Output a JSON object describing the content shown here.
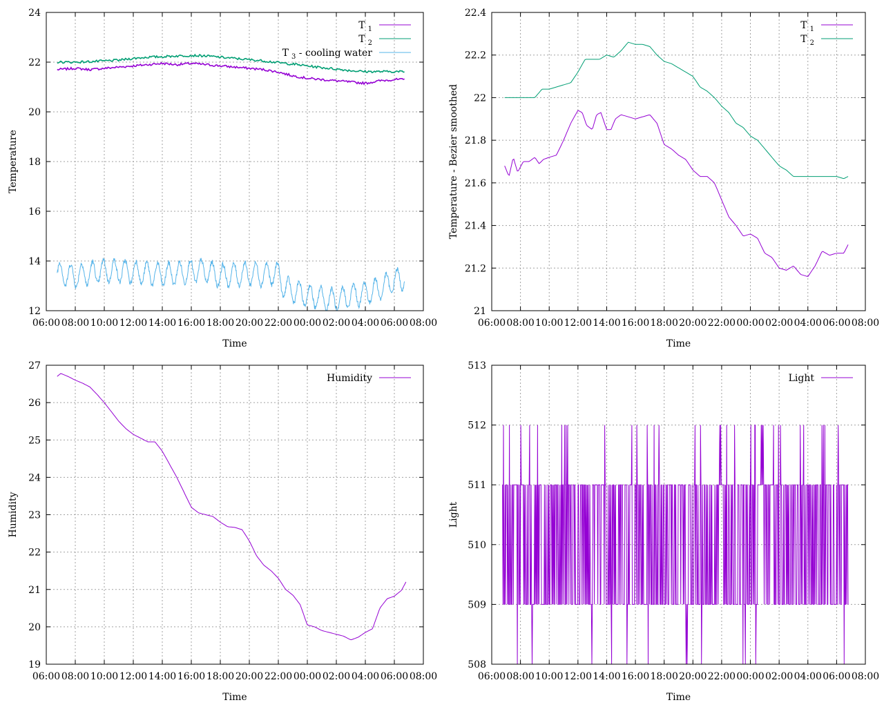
{
  "chart_data": [
    {
      "type": "line",
      "ylabel": "Temperature",
      "xlabel": "Time",
      "ylim": [
        12,
        24
      ],
      "yticks": [
        12,
        14,
        16,
        18,
        20,
        22,
        24
      ],
      "xticks": [
        "06:00",
        "08:00",
        "10:00",
        "12:00",
        "14:00",
        "16:00",
        "18:00",
        "20:00",
        "22:00",
        "00:00",
        "02:00",
        "04:00",
        "06:00",
        "08:00"
      ],
      "grid": true,
      "legend_position": "top-right",
      "series": [
        {
          "name": "T",
          "sub": "1",
          "color": "#9400d3",
          "x": [
            6.75,
            8,
            9,
            10,
            11,
            12,
            13,
            14,
            15,
            16,
            17,
            18,
            19,
            20,
            21,
            22,
            23,
            24,
            25,
            26,
            27,
            28,
            29,
            30,
            30.7
          ],
          "y": [
            21.7,
            21.75,
            21.7,
            21.75,
            21.8,
            21.85,
            21.9,
            21.95,
            21.9,
            21.95,
            21.9,
            21.85,
            21.8,
            21.75,
            21.7,
            21.6,
            21.45,
            21.35,
            21.3,
            21.25,
            21.2,
            21.15,
            21.25,
            21.3,
            21.3
          ]
        },
        {
          "name": "T",
          "sub": "2",
          "color": "#009e73",
          "x": [
            6.75,
            8,
            9,
            10,
            11,
            12,
            13,
            14,
            15,
            16,
            17,
            18,
            19,
            20,
            21,
            22,
            23,
            24,
            25,
            26,
            27,
            28,
            29,
            30,
            30.7
          ],
          "y": [
            22.0,
            22.0,
            22.02,
            22.05,
            22.08,
            22.15,
            22.2,
            22.22,
            22.25,
            22.27,
            22.25,
            22.2,
            22.15,
            22.1,
            22.05,
            21.98,
            21.92,
            21.85,
            21.78,
            21.72,
            21.66,
            21.62,
            21.62,
            21.62,
            21.62
          ]
        },
        {
          "name": "T",
          "sub": "3",
          "suffix": "  - cooling water",
          "color": "#56b4e9",
          "wave": 0.45,
          "x": [
            6.75,
            8,
            9,
            10,
            11,
            12,
            13,
            14,
            15,
            16,
            17,
            18,
            19,
            20,
            21,
            22,
            22.4,
            23,
            24,
            25,
            26,
            27,
            28,
            29,
            30,
            30.7
          ],
          "y": [
            13.5,
            13.4,
            13.5,
            13.6,
            13.6,
            13.55,
            13.5,
            13.45,
            13.5,
            13.6,
            13.6,
            13.4,
            13.45,
            13.5,
            13.45,
            13.5,
            12.9,
            12.8,
            12.6,
            12.5,
            12.4,
            12.6,
            12.7,
            12.9,
            13.2,
            13.3
          ]
        }
      ]
    },
    {
      "type": "line",
      "ylabel": "Temperature - Bezier smoothed",
      "xlabel": "Time",
      "ylim": [
        21,
        22.4
      ],
      "yticks": [
        21,
        21.2,
        21.4,
        21.6,
        21.8,
        22,
        22.2,
        22.4
      ],
      "xticks": [
        "06:00",
        "08:00",
        "10:00",
        "12:00",
        "14:00",
        "16:00",
        "18:00",
        "20:00",
        "22:00",
        "00:00",
        "02:00",
        "04:00",
        "06:00",
        "08:00"
      ],
      "grid": true,
      "legend_position": "top-right",
      "series": [
        {
          "name": "T",
          "sub": "1",
          "color": "#9400d3",
          "x": [
            6.9,
            7.2,
            7.5,
            7.8,
            8.2,
            8.6,
            9.0,
            9.3,
            9.6,
            10.0,
            10.5,
            11.0,
            11.5,
            12.0,
            12.3,
            12.6,
            13.0,
            13.3,
            13.6,
            14.0,
            14.3,
            14.6,
            15.0,
            15.5,
            16.0,
            16.5,
            17.0,
            17.5,
            18.0,
            18.5,
            19.0,
            19.5,
            20.0,
            20.5,
            21.0,
            21.5,
            22.0,
            22.5,
            23.0,
            23.5,
            24.0,
            24.5,
            25.0,
            25.5,
            26.0,
            26.5,
            27.0,
            27.5,
            28.0,
            28.5,
            29.0,
            29.5,
            30.0,
            30.5,
            30.8
          ],
          "y": [
            21.68,
            21.63,
            21.72,
            21.65,
            21.7,
            21.7,
            21.72,
            21.69,
            21.71,
            21.72,
            21.73,
            21.8,
            21.88,
            21.94,
            21.93,
            21.87,
            21.85,
            21.92,
            21.93,
            21.85,
            21.85,
            21.9,
            21.92,
            21.91,
            21.9,
            21.91,
            21.92,
            21.88,
            21.78,
            21.76,
            21.73,
            21.71,
            21.66,
            21.63,
            21.63,
            21.6,
            21.52,
            21.44,
            21.4,
            21.35,
            21.36,
            21.34,
            21.27,
            21.25,
            21.2,
            21.19,
            21.21,
            21.17,
            21.16,
            21.21,
            21.28,
            21.26,
            21.27,
            21.27,
            21.31
          ]
        },
        {
          "name": "T",
          "sub": "2",
          "color": "#009e73",
          "x": [
            6.9,
            7.5,
            8.0,
            8.5,
            9.0,
            9.5,
            10.0,
            10.5,
            11.0,
            11.5,
            12.0,
            12.5,
            13.0,
            13.5,
            14.0,
            14.5,
            15.0,
            15.5,
            16.0,
            16.5,
            17.0,
            17.5,
            18.0,
            18.5,
            19.0,
            19.5,
            20.0,
            20.5,
            21.0,
            21.5,
            22.0,
            22.5,
            23.0,
            23.5,
            24.0,
            24.5,
            25.0,
            25.5,
            26.0,
            26.5,
            27.0,
            27.5,
            28.0,
            28.5,
            29.0,
            29.5,
            30.0,
            30.5,
            30.8
          ],
          "y": [
            22.0,
            22.0,
            22.0,
            22.0,
            22.0,
            22.04,
            22.04,
            22.05,
            22.06,
            22.07,
            22.12,
            22.18,
            22.18,
            22.18,
            22.2,
            22.19,
            22.22,
            22.26,
            22.25,
            22.25,
            22.24,
            22.2,
            22.17,
            22.16,
            22.14,
            22.12,
            22.1,
            22.05,
            22.03,
            22.0,
            21.96,
            21.93,
            21.88,
            21.86,
            21.82,
            21.8,
            21.76,
            21.72,
            21.68,
            21.66,
            21.63,
            21.63,
            21.63,
            21.63,
            21.63,
            21.63,
            21.63,
            21.62,
            21.63
          ]
        }
      ]
    },
    {
      "type": "line",
      "ylabel": "Humidity",
      "xlabel": "Time",
      "ylim": [
        19,
        27
      ],
      "yticks": [
        19,
        20,
        21,
        22,
        23,
        24,
        25,
        26,
        27
      ],
      "xticks": [
        "06:00",
        "08:00",
        "10:00",
        "12:00",
        "14:00",
        "16:00",
        "18:00",
        "20:00",
        "22:00",
        "00:00",
        "02:00",
        "04:00",
        "06:00",
        "08:00"
      ],
      "grid": true,
      "legend_position": "top-right",
      "series": [
        {
          "name": "Humidity",
          "color": "#9400d3",
          "x": [
            6.75,
            7.0,
            7.5,
            8.0,
            8.5,
            9.0,
            9.5,
            10.0,
            10.5,
            11.0,
            11.5,
            12.0,
            12.5,
            13.0,
            13.5,
            14.0,
            14.5,
            15.0,
            15.5,
            16.0,
            16.5,
            17.0,
            17.5,
            18.0,
            18.5,
            19.0,
            19.5,
            20.0,
            20.5,
            21.0,
            21.5,
            22.0,
            22.5,
            23.0,
            23.5,
            24.0,
            24.5,
            25.0,
            25.5,
            26.0,
            26.5,
            27.0,
            27.5,
            28.0,
            28.5,
            29.0,
            29.5,
            30.0,
            30.5,
            30.8
          ],
          "y": [
            26.7,
            26.78,
            26.7,
            26.6,
            26.52,
            26.42,
            26.22,
            26.0,
            25.75,
            25.5,
            25.3,
            25.15,
            25.05,
            24.95,
            24.95,
            24.7,
            24.35,
            24.0,
            23.6,
            23.2,
            23.05,
            23.0,
            22.95,
            22.8,
            22.68,
            22.66,
            22.6,
            22.3,
            21.9,
            21.65,
            21.5,
            21.3,
            21.0,
            20.85,
            20.6,
            20.05,
            20.0,
            19.9,
            19.85,
            19.8,
            19.75,
            19.65,
            19.72,
            19.85,
            19.95,
            20.5,
            20.75,
            20.82,
            20.98,
            21.2
          ]
        }
      ]
    },
    {
      "type": "line",
      "ylabel": "Light",
      "xlabel": "Time",
      "ylim": [
        508,
        513
      ],
      "yticks": [
        508,
        509,
        510,
        511,
        512,
        513
      ],
      "xticks": [
        "06:00",
        "08:00",
        "10:00",
        "12:00",
        "14:00",
        "16:00",
        "18:00",
        "20:00",
        "22:00",
        "00:00",
        "02:00",
        "04:00",
        "06:00",
        "08:00"
      ],
      "grid": true,
      "legend_position": "top-right",
      "series": [
        {
          "name": "Light",
          "color": "#9400d3",
          "noise": true,
          "x_range": [
            6.75,
            30.8
          ],
          "base": 510,
          "band": [
            509,
            511
          ],
          "spikes_high": 512,
          "spikes_low": 508
        }
      ]
    }
  ]
}
